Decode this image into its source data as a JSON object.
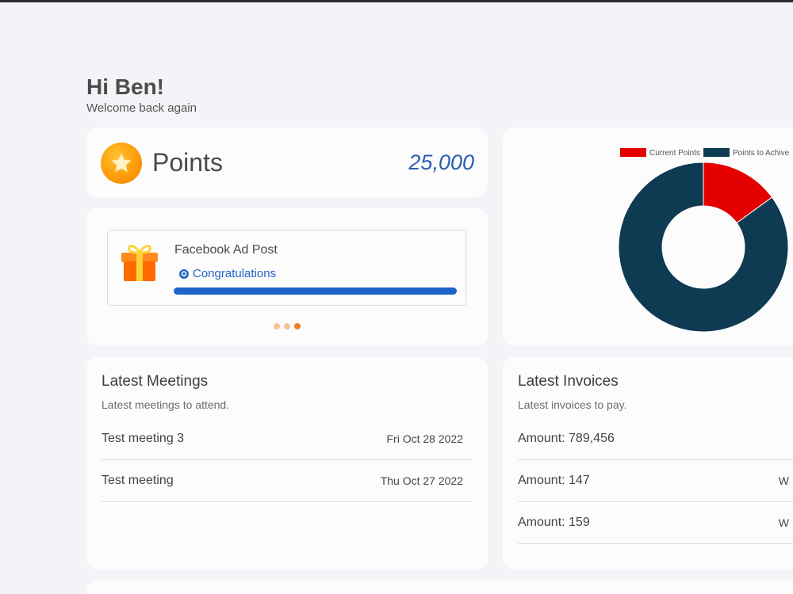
{
  "greeting": {
    "title": "Hi Ben!",
    "subtitle": "Welcome back again"
  },
  "points": {
    "label": "Points",
    "value": "25,000",
    "icon": "star-icon"
  },
  "reward": {
    "title": "Facebook Ad Post",
    "status": "Congratulations",
    "progress": 1.0,
    "icon": "gift-icon",
    "carousel": {
      "count": 3,
      "active_index": 2
    }
  },
  "chart_data": {
    "type": "doughnut",
    "labels": [
      "Current Points",
      "Points to Achive"
    ],
    "values": [
      15,
      85
    ],
    "colors": [
      "#e50000",
      "#0e3a52"
    ],
    "legend_position": "top"
  },
  "meetings": {
    "title": "Latest Meetings",
    "subtitle": "Latest meetings to attend.",
    "items": [
      {
        "name": "Test meeting 3",
        "date": "Fri Oct 28 2022"
      },
      {
        "name": "Test meeting",
        "date": "Thu Oct 27 2022"
      }
    ]
  },
  "invoices": {
    "title": "Latest Invoices",
    "subtitle": "Latest invoices to pay.",
    "items": [
      {
        "amount": "Amount: 789,456",
        "date": ""
      },
      {
        "amount": "Amount: 147",
        "date": "W"
      },
      {
        "amount": "Amount: 159",
        "date": "W"
      }
    ]
  },
  "colors": {
    "accent": "#1e64c8",
    "points_value": "#2a5fb0",
    "orange": "#ee7d22"
  }
}
